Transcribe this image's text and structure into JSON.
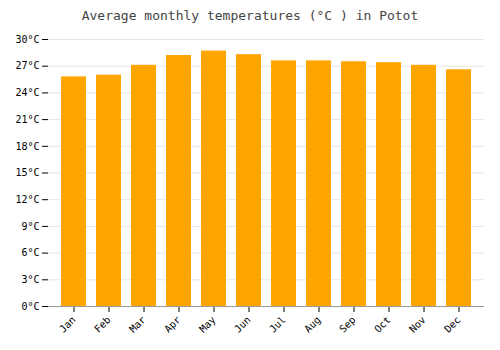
{
  "chart_data": {
    "type": "bar",
    "title": "Average monthly temperatures (°C ) in Potot",
    "categories": [
      "Jan",
      "Feb",
      "Mar",
      "Apr",
      "May",
      "Jun",
      "Jul",
      "Aug",
      "Sep",
      "Oct",
      "Nov",
      "Dec"
    ],
    "values": [
      25.8,
      26.0,
      27.1,
      28.2,
      28.7,
      28.3,
      27.6,
      27.6,
      27.5,
      27.4,
      27.1,
      26.6
    ],
    "color": "#FFA500",
    "ylim": [
      0,
      30
    ],
    "yticks": [
      {
        "value": 0,
        "label": "0°C"
      },
      {
        "value": 3,
        "label": "3°C"
      },
      {
        "value": 6,
        "label": "6°C"
      },
      {
        "value": 9,
        "label": "9°C"
      },
      {
        "value": 12,
        "label": "12°C"
      },
      {
        "value": 15,
        "label": "15°C"
      },
      {
        "value": 18,
        "label": "18°C"
      },
      {
        "value": 21,
        "label": "21°C"
      },
      {
        "value": 24,
        "label": "24°C"
      },
      {
        "value": 27,
        "label": "27°C"
      },
      {
        "value": 30,
        "label": "30°C"
      }
    ],
    "grid": true
  }
}
